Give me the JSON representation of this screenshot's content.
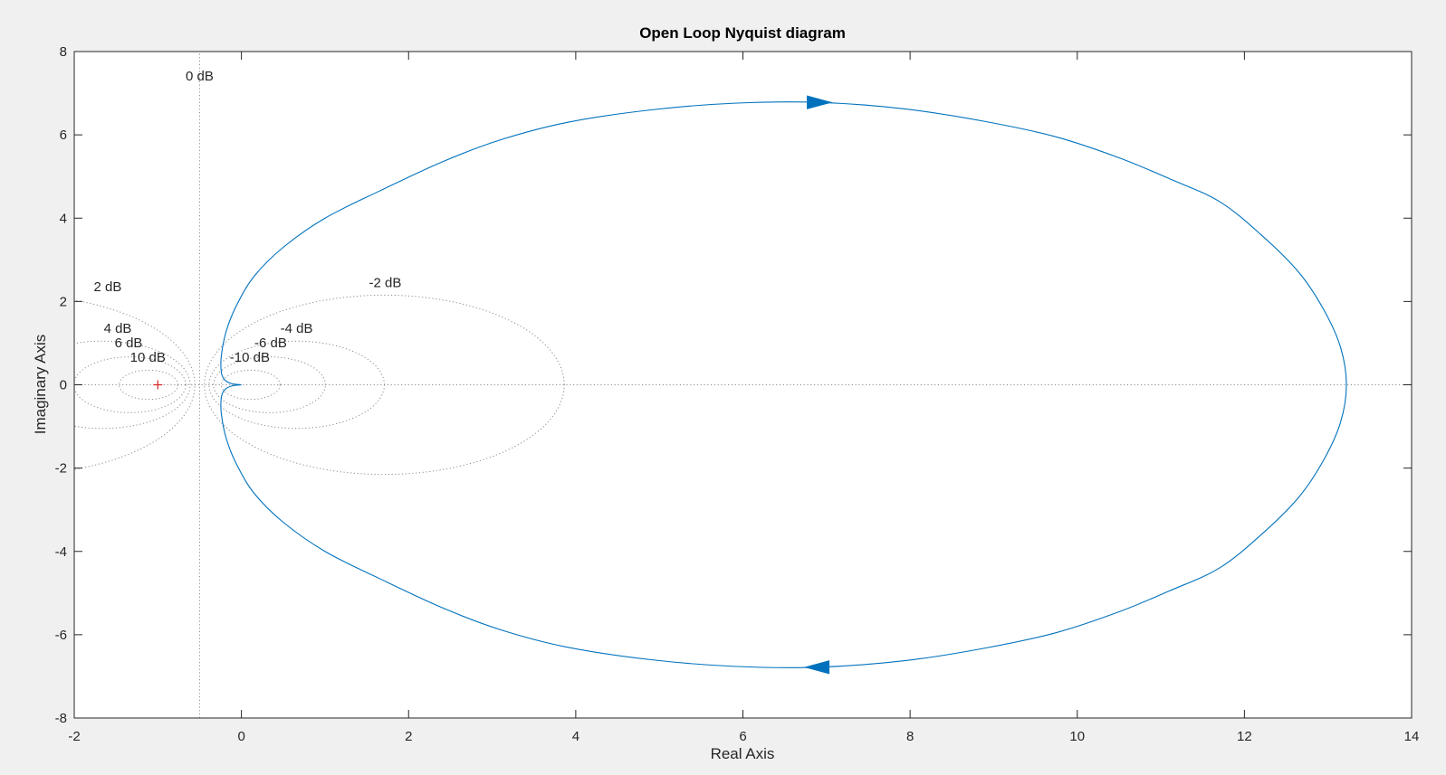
{
  "chart_data": {
    "type": "line",
    "title": "Open Loop Nyquist diagram",
    "xlabel": "Real Axis",
    "ylabel": "Imaginary Axis",
    "xlim": [
      -2,
      14
    ],
    "ylim": [
      -8,
      8
    ],
    "xticks": [
      -2,
      0,
      2,
      4,
      6,
      8,
      10,
      12,
      14
    ],
    "yticks": [
      -8,
      -6,
      -4,
      -2,
      0,
      2,
      4,
      6,
      8
    ],
    "grid": "nyquist M-circles (dotted)",
    "critical_point": {
      "x": -1,
      "y": 0,
      "marker": "+",
      "color": "#d62728"
    },
    "curve_color": "#0072bd",
    "grid_color": "#8c8c8c",
    "m_circle_labels": [
      {
        "text": "0 dB",
        "x": -0.5,
        "y": 7.3
      },
      {
        "text": "2 dB",
        "x": -1.6,
        "y": 2.25
      },
      {
        "text": "4 dB",
        "x": -1.48,
        "y": 1.25
      },
      {
        "text": "6 dB",
        "x": -1.35,
        "y": 0.9
      },
      {
        "text": "10 dB",
        "x": -1.12,
        "y": 0.55
      },
      {
        "text": "-2 dB",
        "x": 1.72,
        "y": 2.35
      },
      {
        "text": "-4 dB",
        "x": 0.66,
        "y": 1.25
      },
      {
        "text": "-6 dB",
        "x": 0.35,
        "y": 0.9
      },
      {
        "text": "-10 dB",
        "x": 0.1,
        "y": 0.55
      }
    ],
    "series": [
      {
        "points": [
          [
            0,
            0
          ],
          [
            -0.12,
            0.03
          ],
          [
            -0.2,
            0.12
          ],
          [
            -0.24,
            0.3
          ],
          [
            -0.24,
            0.7
          ],
          [
            -0.18,
            1.3
          ],
          [
            -0.06,
            1.9
          ],
          [
            0.15,
            2.6
          ],
          [
            0.5,
            3.3
          ],
          [
            1.0,
            4.0
          ],
          [
            1.65,
            4.65
          ],
          [
            2.4,
            5.35
          ],
          [
            3.1,
            5.88
          ],
          [
            3.9,
            6.3
          ],
          [
            4.9,
            6.6
          ],
          [
            5.9,
            6.76
          ],
          [
            6.9,
            6.78
          ],
          [
            7.95,
            6.62
          ],
          [
            8.9,
            6.32
          ],
          [
            9.75,
            5.95
          ],
          [
            10.5,
            5.45
          ],
          [
            11.1,
            4.95
          ],
          [
            11.7,
            4.4
          ],
          [
            12.2,
            3.6
          ],
          [
            12.65,
            2.7
          ],
          [
            12.95,
            1.8
          ],
          [
            13.15,
            0.9
          ],
          [
            13.22,
            0.0
          ],
          [
            13.15,
            -0.9
          ],
          [
            12.95,
            -1.8
          ],
          [
            12.65,
            -2.7
          ],
          [
            12.2,
            -3.6
          ],
          [
            11.7,
            -4.4
          ],
          [
            11.1,
            -4.95
          ],
          [
            10.5,
            -5.45
          ],
          [
            9.75,
            -5.95
          ],
          [
            8.9,
            -6.32
          ],
          [
            7.95,
            -6.62
          ],
          [
            6.9,
            -6.78
          ],
          [
            5.9,
            -6.76
          ],
          [
            4.9,
            -6.6
          ],
          [
            3.9,
            -6.3
          ],
          [
            3.1,
            -5.88
          ],
          [
            2.4,
            -5.35
          ],
          [
            1.65,
            -4.65
          ],
          [
            1.0,
            -4.0
          ],
          [
            0.5,
            -3.3
          ],
          [
            0.15,
            -2.6
          ],
          [
            -0.06,
            -1.9
          ],
          [
            -0.18,
            -1.3
          ],
          [
            -0.24,
            -0.7
          ],
          [
            -0.24,
            -0.3
          ],
          [
            -0.2,
            -0.12
          ],
          [
            -0.12,
            -0.03
          ],
          [
            0,
            0
          ]
        ],
        "arrows": [
          {
            "x": 6.9,
            "y": 6.78,
            "direction": "right"
          },
          {
            "x": 6.9,
            "y": -6.78,
            "direction": "left"
          }
        ]
      }
    ]
  }
}
